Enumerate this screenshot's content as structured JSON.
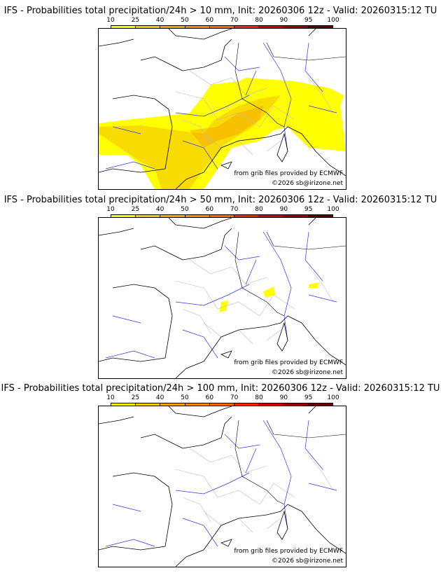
{
  "panels": [
    {
      "title": "IFS - Probabilities total precipitation/24h > 10 mm, Init: 20260306 12z - Valid: 20260315:12 TU",
      "threshold_mm": 10
    },
    {
      "title": "IFS - Probabilities total precipitation/24h > 50 mm, Init: 20260306 12z - Valid: 20260315:12 TU",
      "threshold_mm": 50
    },
    {
      "title": "IFS - Probabilities total precipitation/24h > 100 mm, Init: 20260306 12z - Valid: 20260315:12 TU",
      "threshold_mm": 100
    }
  ],
  "colorbar": {
    "labels": [
      "10",
      "25",
      "40",
      "50",
      "60",
      "70",
      "80",
      "90",
      "95",
      "100"
    ],
    "colors": [
      "#ffff00",
      "#f5cc00",
      "#f5a600",
      "#ff8c00",
      "#ff6a00",
      "#ff2000",
      "#d00000",
      "#990000",
      "#600000"
    ]
  },
  "credits": {
    "source": "from grib files provided by ECMWF",
    "copyright": "©2026 sb@irizone.net"
  }
}
